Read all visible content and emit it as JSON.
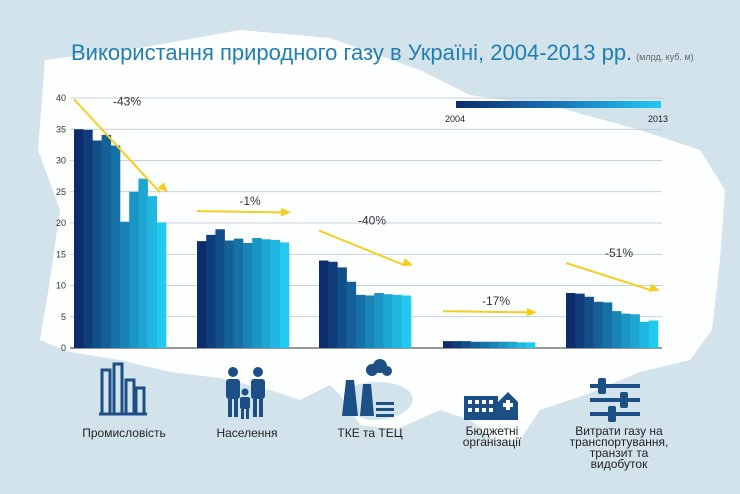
{
  "chart_data": {
    "type": "bar",
    "title": "Використання природного газу в Україні, 2004-2013 рр.",
    "subtitle": "(млрд. куб. м)",
    "ylim": [
      0,
      40
    ],
    "yticks": [
      0,
      5,
      10,
      15,
      20,
      25,
      30,
      35,
      40
    ],
    "grid": true,
    "legend": {
      "start_label": "2004",
      "end_label": "2013",
      "placement": "top-right"
    },
    "series_years": [
      "2004",
      "2005",
      "2006",
      "2007",
      "2008",
      "2009",
      "2010",
      "2011",
      "2012",
      "2013"
    ],
    "categories": [
      {
        "name": "Промисловість",
        "change": "-43%",
        "icon": "factory-icon",
        "values": [
          35.0,
          34.9,
          33.2,
          34.1,
          32.4,
          20.2,
          25.0,
          27.1,
          24.3,
          20.1
        ]
      },
      {
        "name": "Населення",
        "change": "-1%",
        "icon": "family-icon",
        "values": [
          17.1,
          18.1,
          19.0,
          17.2,
          17.5,
          16.8,
          17.6,
          17.4,
          17.3,
          16.9
        ]
      },
      {
        "name": "ТКЕ та ТЕЦ",
        "change": "-40%",
        "icon": "power-plant-icon",
        "values": [
          14.0,
          13.8,
          12.9,
          10.6,
          8.5,
          8.4,
          8.8,
          8.6,
          8.5,
          8.4
        ]
      },
      {
        "name": "Бюджетні організації",
        "change": "-17%",
        "icon": "public-building-icon",
        "values": [
          1.1,
          1.1,
          1.1,
          1.0,
          1.0,
          1.0,
          1.0,
          1.0,
          0.9,
          0.9
        ]
      },
      {
        "name": "Витрати газу на транспортування, транзит та видобуток",
        "change": "-51%",
        "icon": "pipeline-icon",
        "values": [
          8.8,
          8.7,
          8.2,
          7.4,
          7.3,
          5.9,
          5.5,
          5.4,
          4.2,
          4.4
        ]
      }
    ]
  },
  "colors": {
    "map_background": "#d3e3ec",
    "land": "#ffffff",
    "title": "#1f7fb3",
    "arrow": "#f5cf1d",
    "icon": "#1c4f86",
    "gradient_start": "#0d2c6b",
    "gradient_end": "#22c9f0"
  },
  "labels": {
    "cat0": "Промисловість",
    "cat1": "Населення",
    "cat2": "ТКЕ та ТЕЦ",
    "cat3": "Бюджетні\nорганізації",
    "cat4": "Витрати газу на\nтранспортування,\nтранзит та\nвидобуток"
  }
}
